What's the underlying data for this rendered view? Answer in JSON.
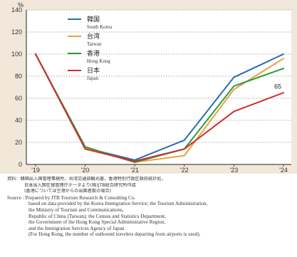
{
  "chart_data": {
    "type": "line",
    "y_unit": "%",
    "x": [
      "'19",
      "'20",
      "'21",
      "'22",
      "'23",
      "'24"
    ],
    "ylim": [
      0,
      140
    ],
    "yticks": [
      0,
      20,
      40,
      60,
      80,
      100,
      120,
      140
    ],
    "grid": true,
    "legend_position": "top-left",
    "series": [
      {
        "name": "韓国",
        "name_en": "South Korea",
        "color": "#2a6db3",
        "values": [
          100,
          15,
          4,
          22,
          79,
          100
        ]
      },
      {
        "name": "台湾",
        "name_en": "Taiwan",
        "color": "#e8a33a",
        "values": [
          100,
          15,
          2,
          8,
          68,
          96
        ]
      },
      {
        "name": "香港",
        "name_en": "Hong Kong",
        "color": "#2e9b3e",
        "values": [
          100,
          16,
          2,
          14,
          71,
          87
        ]
      },
      {
        "name": "日本",
        "name_en": "Japan",
        "color": "#cf2e2e",
        "values": [
          100,
          14,
          3,
          14,
          48,
          65
        ]
      }
    ],
    "annotations": [
      {
        "text": "65",
        "series": "日本",
        "x": "'24"
      }
    ]
  },
  "notes": {
    "jp": [
      "資料：韓国出入国管理事務所，台湾交通部観光署，香港特別行政区政府統計処，",
      "日本出入国在留管理庁データより(株)JTB総合研究所作成",
      "(香港については空港からの出国者数の場合)"
    ],
    "source": [
      "Source : Prepared by JTB Tourism Research & Consulting Co.",
      "based on data provided by the Korea Immigration Service; the Tourism Administration,",
      "the Ministry of Tourism and Communications,",
      "Republic of China (Taiwan); the Census and Statistics Department,",
      "the Government of the Hong Kong Special Administrative Region,",
      "and the Immigration Services Agency of Japan",
      "(For Hong Kong, the number of outbound travelers departing from airports is used)."
    ]
  }
}
